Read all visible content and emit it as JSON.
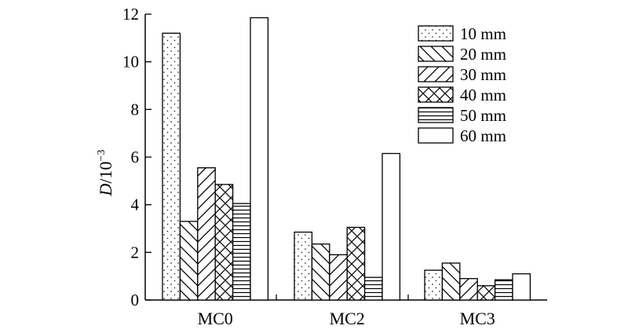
{
  "chart_data": {
    "type": "bar",
    "title": "",
    "xlabel": "",
    "ylabel": {
      "base": "D",
      "rest": "/10",
      "sup": "−3"
    },
    "categories": [
      "MC0",
      "MC2",
      "MC3"
    ],
    "ylim": [
      0,
      12
    ],
    "yticks": [
      0,
      2,
      4,
      6,
      8,
      10,
      12
    ],
    "ytick_labels": [
      "0",
      "2",
      "4",
      "6",
      "8",
      "10",
      "12"
    ],
    "series": [
      {
        "name": "10 mm",
        "pattern": "dots",
        "values": [
          11.2,
          2.85,
          1.25
        ]
      },
      {
        "name": "20 mm",
        "pattern": "back-diag",
        "values": [
          3.3,
          2.35,
          1.55
        ]
      },
      {
        "name": "30 mm",
        "pattern": "fwd-diag",
        "values": [
          5.55,
          1.9,
          0.9
        ]
      },
      {
        "name": "40 mm",
        "pattern": "cross-diag",
        "values": [
          4.85,
          3.05,
          0.6
        ]
      },
      {
        "name": "50 mm",
        "pattern": "horizontal",
        "values": [
          4.05,
          0.95,
          0.85
        ]
      },
      {
        "name": "60 mm",
        "pattern": "blank",
        "values": [
          11.85,
          6.15,
          1.1
        ]
      }
    ],
    "legend_position": "top-right",
    "grid": false,
    "colors": {
      "stroke": "#000000",
      "fill": "#ffffff"
    }
  }
}
